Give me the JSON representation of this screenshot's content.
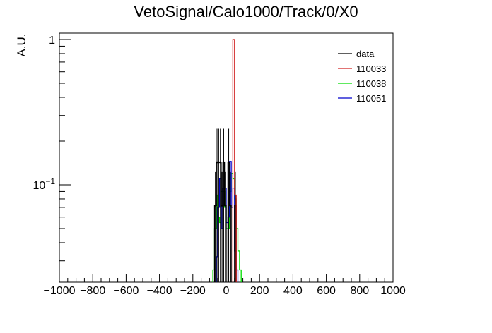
{
  "chart_data": {
    "type": "histogram",
    "title": "VetoSignal/Calo1000/Track/0/X0",
    "xlabel": "",
    "ylabel": "A.U.",
    "xlim": [
      -1000,
      1000
    ],
    "ylim": [
      0.023,
      1.1
    ],
    "y_scale": "log",
    "grid": false,
    "legend_position": "top-right",
    "x_ticks": [
      -1000,
      -800,
      -600,
      -400,
      -200,
      0,
      200,
      400,
      600,
      800,
      1000
    ],
    "y_tick_labels": [
      {
        "value": 1,
        "mantissa": "1",
        "exponent": ""
      },
      {
        "value": 0.1,
        "mantissa": "10",
        "exponent": "−1"
      }
    ],
    "bin_width": 10,
    "series": [
      {
        "name": "data",
        "color": "#000000",
        "error_bars": true,
        "bins": [
          [
            -70,
            0.072
          ],
          [
            -60,
            0.143
          ],
          [
            -50,
            0.143
          ],
          [
            -40,
            0.143
          ],
          [
            -30,
            0.072
          ],
          [
            -20,
            0.143
          ],
          [
            -10,
            0.072
          ],
          [
            10,
            0.143
          ],
          [
            20,
            0.072
          ],
          [
            50,
            0.072
          ]
        ]
      },
      {
        "name": "110033",
        "color": "#d02020",
        "error_bars": false,
        "bins": [
          [
            40,
            1.0
          ],
          [
            50,
            0.085
          ]
        ]
      },
      {
        "name": "110038",
        "color": "#00dd00",
        "error_bars": false,
        "bins": [
          [
            -80,
            0.026
          ],
          [
            -70,
            0.05
          ],
          [
            -60,
            0.085
          ],
          [
            -50,
            0.06
          ],
          [
            -40,
            0.055
          ],
          [
            -30,
            0.09
          ],
          [
            -20,
            0.09
          ],
          [
            -10,
            0.07
          ],
          [
            0,
            0.05
          ],
          [
            10,
            0.05
          ],
          [
            20,
            0.09
          ],
          [
            30,
            0.12
          ],
          [
            40,
            0.11
          ],
          [
            50,
            0.08
          ],
          [
            60,
            0.05
          ],
          [
            70,
            0.035
          ],
          [
            80,
            0.026
          ]
        ]
      },
      {
        "name": "110051",
        "color": "#0000cc",
        "error_bars": false,
        "bins": [
          [
            -60,
            0.032
          ],
          [
            -50,
            0.07
          ],
          [
            -40,
            0.11
          ],
          [
            -30,
            0.05
          ],
          [
            -20,
            0.095
          ],
          [
            -10,
            0.095
          ],
          [
            0,
            0.055
          ],
          [
            10,
            0.06
          ],
          [
            20,
            0.145
          ],
          [
            30,
            0.07
          ],
          [
            40,
            0.095
          ],
          [
            50,
            0.035
          ],
          [
            60,
            0.026
          ]
        ]
      }
    ]
  }
}
